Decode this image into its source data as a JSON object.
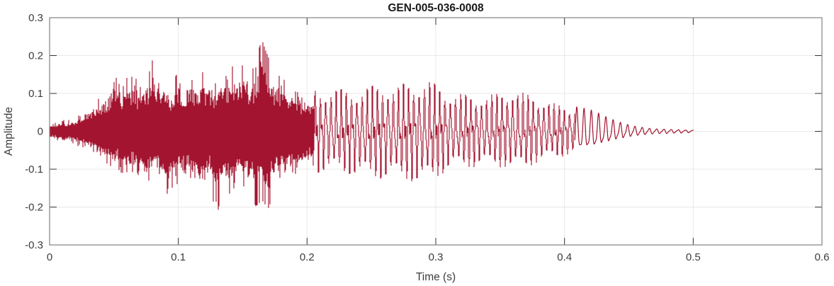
{
  "chart_data": {
    "type": "line",
    "subtype": "audio-waveform",
    "title": "GEN-005-036-0008",
    "xlabel": "Time (s)",
    "ylabel": "Amplitude",
    "xlim": [
      0,
      0.6
    ],
    "ylim": [
      -0.3,
      0.3
    ],
    "xticks": [
      0,
      0.1,
      0.2,
      0.3,
      0.4,
      0.5,
      0.6
    ],
    "yticks": [
      -0.3,
      -0.2,
      -0.1,
      0,
      0.1,
      0.2,
      0.3
    ],
    "grid": true,
    "legend": "none",
    "line_color": "#A2142F",
    "grid_color": "#E8E8E8",
    "box_color": "#8C8C8C",
    "tick_color": "#333333",
    "text_color": "#3C3C3C",
    "title_color": "#1A1A1A",
    "signal": {
      "duration_s": 0.5,
      "sample_step_s": 0.005,
      "peak_positive": {
        "t_s": 0.165,
        "amplitude": 0.25
      },
      "peak_negative": {
        "t_s": 0.131,
        "amplitude": -0.23
      },
      "segments": [
        {
          "label": "dense noisy onset",
          "start_s": 0.0,
          "end_s": 0.206
        },
        {
          "label": "periodic voiced section ~250 Hz",
          "start_s": 0.206,
          "end_s": 0.408
        },
        {
          "label": "decaying tail to zero",
          "start_s": 0.408,
          "end_s": 0.5
        }
      ],
      "envelope_pos": [
        0.02,
        0.025,
        0.03,
        0.03,
        0.035,
        0.05,
        0.065,
        0.08,
        0.09,
        0.11,
        0.165,
        0.12,
        0.14,
        0.17,
        0.125,
        0.13,
        0.197,
        0.14,
        0.125,
        0.12,
        0.17,
        0.145,
        0.17,
        0.15,
        0.17,
        0.13,
        0.14,
        0.16,
        0.18,
        0.175,
        0.18,
        0.165,
        0.17,
        0.252,
        0.2,
        0.16,
        0.15,
        0.13,
        0.115,
        0.105,
        0.1,
        0.095,
        0.09,
        0.095,
        0.1,
        0.095,
        0.09,
        0.09,
        0.095,
        0.1,
        0.1,
        0.1,
        0.105,
        0.105,
        0.1,
        0.105,
        0.105,
        0.11,
        0.113,
        0.113,
        0.105,
        0.095,
        0.09,
        0.085,
        0.085,
        0.08,
        0.08,
        0.08,
        0.08,
        0.085,
        0.085,
        0.09,
        0.095,
        0.09,
        0.085,
        0.08,
        0.075,
        0.07,
        0.065,
        0.06,
        0.058,
        0.055,
        0.05,
        0.048,
        0.045,
        0.04,
        0.033,
        0.028,
        0.022,
        0.018,
        0.014,
        0.011,
        0.009,
        0.007,
        0.006,
        0.005,
        0.005,
        0.004,
        0.004,
        0.003,
        0.003
      ],
      "envelope_neg": [
        0.02,
        0.022,
        0.028,
        0.03,
        0.035,
        0.045,
        0.055,
        0.07,
        0.08,
        0.09,
        0.1,
        0.11,
        0.13,
        0.12,
        0.115,
        0.14,
        0.12,
        0.15,
        0.17,
        0.16,
        0.14,
        0.15,
        0.14,
        0.175,
        0.19,
        0.15,
        0.228,
        0.16,
        0.175,
        0.155,
        0.15,
        0.165,
        0.2,
        0.185,
        0.21,
        0.16,
        0.15,
        0.13,
        0.12,
        0.11,
        0.1,
        0.095,
        0.09,
        0.09,
        0.09,
        0.09,
        0.095,
        0.095,
        0.1,
        0.1,
        0.105,
        0.105,
        0.105,
        0.1,
        0.105,
        0.11,
        0.11,
        0.115,
        0.115,
        0.11,
        0.105,
        0.095,
        0.085,
        0.08,
        0.08,
        0.08,
        0.08,
        0.075,
        0.075,
        0.075,
        0.08,
        0.08,
        0.085,
        0.08,
        0.08,
        0.075,
        0.07,
        0.065,
        0.06,
        0.058,
        0.055,
        0.052,
        0.048,
        0.045,
        0.042,
        0.035,
        0.03,
        0.025,
        0.02,
        0.016,
        0.012,
        0.01,
        0.008,
        0.007,
        0.006,
        0.005,
        0.004,
        0.004,
        0.003,
        0.003,
        0.003
      ]
    }
  }
}
